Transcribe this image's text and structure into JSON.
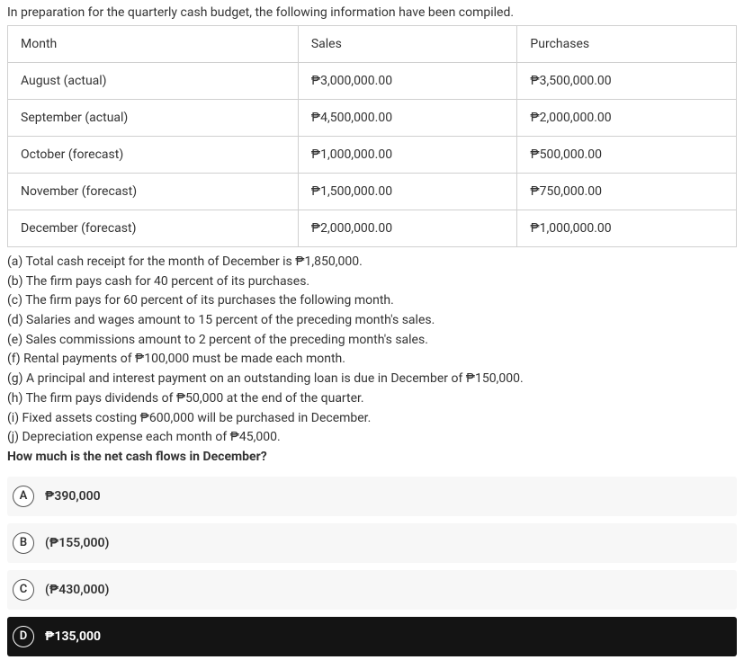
{
  "intro": "In preparation for the quarterly cash budget, the following information have been compiled.",
  "table": {
    "headers": [
      "Month",
      "Sales",
      "Purchases"
    ],
    "rows": [
      [
        "August (actual)",
        "₱3,000,000.00",
        "₱3,500,000.00"
      ],
      [
        "September (actual)",
        "₱4,500,000.00",
        "₱2,000,000.00"
      ],
      [
        "October (forecast)",
        "₱1,000,000.00",
        "₱500,000.00"
      ],
      [
        "November (forecast)",
        "₱1,500,000.00",
        "₱750,000.00"
      ],
      [
        "December (forecast)",
        "₱2,000,000.00",
        "₱1,000,000.00"
      ]
    ]
  },
  "statements": [
    "(a) Total cash receipt for the month of December is ₱1,850,000.",
    "(b) The firm pays cash for 40 percent of its purchases.",
    "(c) The firm pays for 60 percent of its purchases the following month.",
    "(d) Salaries and wages amount to 15 percent of the preceding month's sales.",
    "(e) Sales commissions amount to 2 percent of the preceding month's sales.",
    "(f) Rental payments of ₱100,000 must be made each month.",
    "(g) A principal and interest payment on an outstanding loan is due in December of ₱150,000.",
    "(h) The firm pays dividends of ₱50,000 at the end of the quarter.",
    "(i) Fixed assets costing ₱600,000 will be purchased in December.",
    "(j) Depreciation expense each month of ₱45,000."
  ],
  "question": "How much is the net cash flows in December?",
  "options": [
    {
      "letter": "A",
      "label": "₱390,000",
      "selected": false,
      "paren": false
    },
    {
      "letter": "B",
      "label": "(₱155,000)",
      "selected": false,
      "paren": true
    },
    {
      "letter": "C",
      "label": "(₱430,000)",
      "selected": false,
      "paren": true
    },
    {
      "letter": "D",
      "label": "₱135,000",
      "selected": true,
      "paren": false
    }
  ],
  "colors": {
    "border": "#d0d0d0",
    "option_bg": "#f7f7f7",
    "selected_bg": "#141414",
    "text": "#333333"
  }
}
